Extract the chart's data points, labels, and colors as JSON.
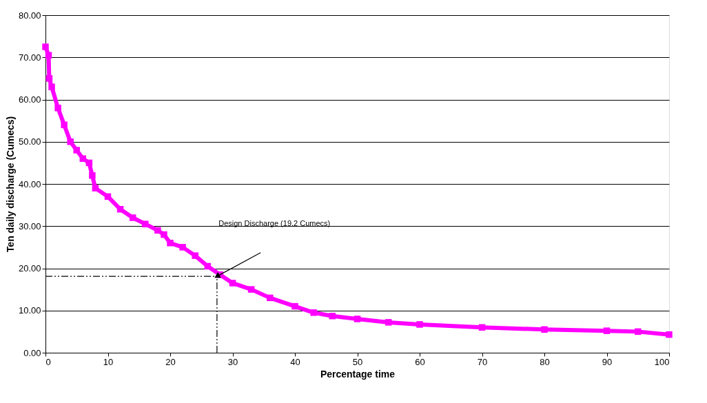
{
  "chart_data": {
    "type": "line",
    "xlabel": "Percentage time",
    "ylabel": "Ten daily discharge (Cumecs)",
    "xlim": [
      0,
      100
    ],
    "xticks": [
      0,
      10,
      20,
      30,
      40,
      50,
      60,
      70,
      80,
      90,
      100
    ],
    "ylim": [
      0,
      80
    ],
    "yticks": [
      {
        "value": 0,
        "label": "0.00"
      },
      {
        "value": 10,
        "label": "10.00"
      },
      {
        "value": 20,
        "label": "20.00"
      },
      {
        "value": 30,
        "label": "30.00"
      },
      {
        "value": 40,
        "label": "40.00"
      },
      {
        "value": 50,
        "label": "50.00"
      },
      {
        "value": 60,
        "label": "60.00"
      },
      {
        "value": 70,
        "label": "70.00"
      },
      {
        "value": 80,
        "label": "80.00"
      }
    ],
    "grid": "y",
    "marker": "square",
    "line_style": "solid",
    "series": [
      {
        "color": "#ff00ff",
        "x": [
          0,
          0.5,
          0.6,
          1,
          2,
          3,
          4,
          5,
          6,
          7,
          7.5,
          8,
          10,
          12,
          14,
          16,
          18,
          19,
          20,
          22,
          24,
          26,
          28,
          30,
          33,
          36,
          40,
          43,
          46,
          50,
          55,
          60,
          70,
          80,
          90,
          95,
          100
        ],
        "values": [
          72.5,
          70.5,
          65,
          63,
          58,
          54,
          50,
          48,
          46,
          45,
          42,
          39,
          37,
          34,
          32,
          30.5,
          29,
          28,
          26,
          25,
          23,
          20.5,
          18.5,
          16.5,
          15,
          13,
          11,
          9.5,
          8.7,
          8,
          7.2,
          6.7,
          6,
          5.5,
          5.2,
          5,
          4.3
        ]
      }
    ],
    "ref_lines": [
      {
        "axis": "y",
        "value": 18.1,
        "color": "#000000",
        "line_style": "dashed"
      },
      {
        "axis": "x",
        "value": 27.5,
        "color": "#000000",
        "line_style": "dashed"
      }
    ],
    "annotations": [
      "Design Discharge (19.2 Cumecs)"
    ]
  }
}
